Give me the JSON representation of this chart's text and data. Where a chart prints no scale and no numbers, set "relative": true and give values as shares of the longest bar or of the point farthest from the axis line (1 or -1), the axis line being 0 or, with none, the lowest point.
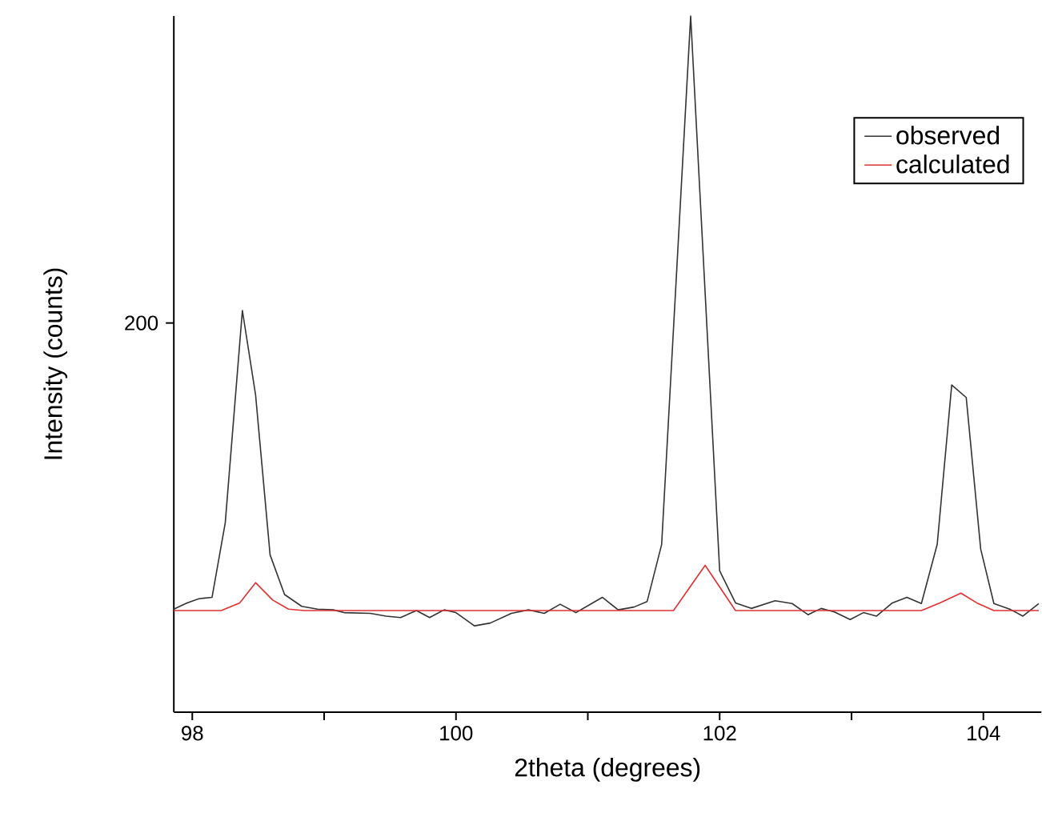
{
  "chart_data": {
    "type": "line",
    "relative": true,
    "annotations": [
      "200"
    ],
    "xlabel": "2theta (degrees)",
    "ylabel": "Intensity (counts)",
    "xlim": [
      97.86,
      104.44
    ],
    "xticks": [
      98,
      {
        "value": 99,
        "label": null
      },
      100,
      {
        "value": 101,
        "label": null
      },
      102,
      {
        "value": 103,
        "label": null
      },
      104
    ],
    "legend": "top right",
    "grid": false,
    "series": [
      {
        "name": "observed",
        "color": "#333333",
        "x": [
          97.86,
          97.96,
          98.05,
          98.15,
          98.25,
          98.38,
          98.48,
          98.59,
          98.7,
          98.83,
          98.95,
          99.07,
          99.15,
          99.35,
          99.47,
          99.58,
          99.7,
          99.8,
          99.91,
          100.0,
          100.14,
          100.26,
          100.42,
          100.55,
          100.67,
          100.79,
          100.91,
          101.11,
          101.23,
          101.35,
          101.45,
          101.56,
          101.78,
          102.0,
          102.12,
          102.24,
          102.42,
          102.55,
          102.67,
          102.77,
          102.87,
          102.99,
          103.09,
          103.19,
          103.31,
          103.42,
          103.53,
          103.65,
          103.76,
          103.87,
          103.98,
          104.08,
          104.2,
          104.3,
          104.42
        ],
        "values": [
          0.148,
          0.157,
          0.163,
          0.165,
          0.272,
          0.577,
          0.456,
          0.226,
          0.169,
          0.152,
          0.148,
          0.147,
          0.143,
          0.142,
          0.138,
          0.136,
          0.146,
          0.136,
          0.147,
          0.143,
          0.124,
          0.128,
          0.142,
          0.147,
          0.142,
          0.155,
          0.143,
          0.165,
          0.147,
          0.151,
          0.159,
          0.241,
          1,
          0.203,
          0.157,
          0.149,
          0.16,
          0.156,
          0.14,
          0.149,
          0.144,
          0.133,
          0.143,
          0.138,
          0.157,
          0.165,
          0.156,
          0.241,
          0.47,
          0.452,
          0.234,
          0.156,
          0.148,
          0.138,
          0.156
        ]
      },
      {
        "name": "calculated",
        "color": "#e03030",
        "x": [
          97.86,
          98.22,
          98.36,
          98.48,
          98.61,
          98.73,
          98.85,
          101.65,
          101.89,
          102.12,
          103.53,
          103.67,
          103.83,
          103.95,
          104.08,
          104.42
        ],
        "values": [
          0.146,
          0.146,
          0.157,
          0.186,
          0.161,
          0.148,
          0.146,
          0.146,
          0.211,
          0.146,
          0.146,
          0.157,
          0.171,
          0.157,
          0.146,
          0.146
        ]
      }
    ]
  }
}
